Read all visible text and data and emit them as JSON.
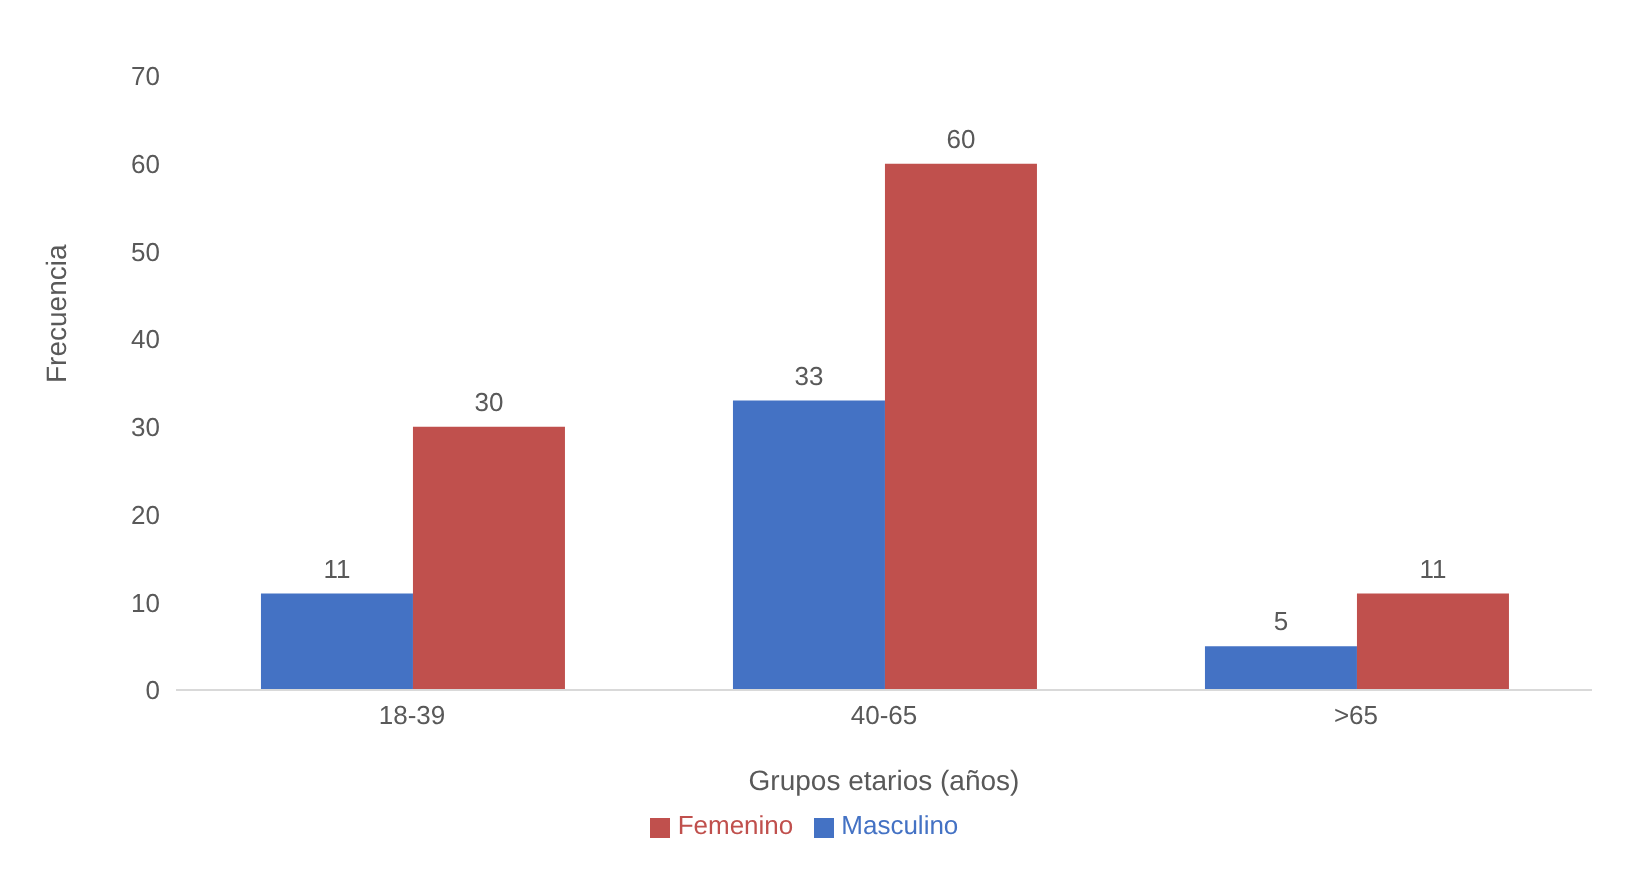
{
  "chart_data": {
    "type": "bar",
    "xlabel": "Grupos etarios (años)",
    "ylabel": "Frecuencia",
    "categories": [
      "18-39",
      "40-65",
      ">65"
    ],
    "series": [
      {
        "name": "Masculino",
        "color": "#4472c4",
        "values": [
          11,
          33,
          5
        ]
      },
      {
        "name": "Femenino",
        "color": "#c0504d",
        "values": [
          30,
          60,
          11
        ]
      }
    ],
    "ylim": [
      0,
      70
    ],
    "yticks": [
      0,
      10,
      20,
      30,
      40,
      50,
      60,
      70
    ],
    "data_labels": true,
    "legend": "bottom",
    "grid": false
  }
}
